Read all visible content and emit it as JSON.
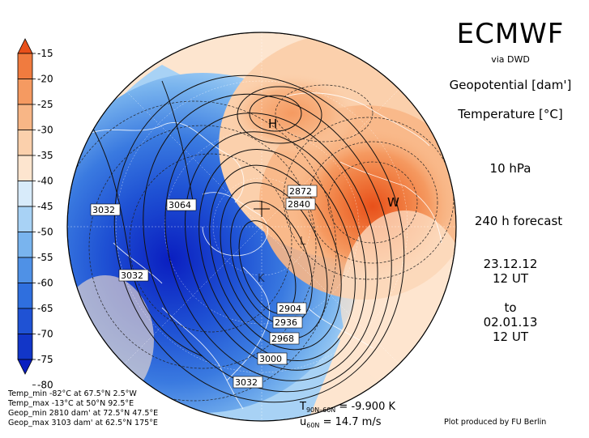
{
  "header": {
    "title": "ECMWF",
    "source": "via DWD",
    "variable_1": "Geopotential [dam']",
    "variable_2": "Temperature [°C]",
    "level": "10 hPa",
    "forecast": "240 h forecast",
    "init_date": "23.12.12",
    "init_time": "12 UT",
    "to_label": "to",
    "valid_date": "02.01.13",
    "valid_time": "12 UT"
  },
  "colorbar": {
    "labels": [
      "-15",
      "-20",
      "-25",
      "-30",
      "-35",
      "-40",
      "-45",
      "-50",
      "-55",
      "-60",
      "-65",
      "-70",
      "-75",
      "-80"
    ],
    "colors": [
      "#e8501a",
      "#f07b3f",
      "#f59a61",
      "#f8b686",
      "#fbd0ac",
      "#fde5cf",
      "#d8ebfa",
      "#a8d2f5",
      "#79b4ee",
      "#4f91e6",
      "#2f6fde",
      "#1f52d4",
      "#1236c8",
      "#0a1ec0"
    ]
  },
  "map": {
    "contour_labels": [
      "3032",
      "3064",
      "3032",
      "2872",
      "2840",
      "2904",
      "2936",
      "2968",
      "3000",
      "3032"
    ],
    "markers": [
      "H",
      "W",
      "L",
      "K"
    ]
  },
  "stats": {
    "temp_min": "Temp_min -82°C at 67.5°N 2.5°W",
    "temp_max": "Temp_max -13°C at 50°N 92.5°E",
    "geop_min": "Geop_min 2810 dam' at 72.5°N 47.5°E",
    "geop_max": "Geop_max 3103 dam' at 62.5°N 175°E"
  },
  "indices": {
    "t_symbol": "T",
    "t_sub": "90N–60N",
    "t_value": "= -9.900 K",
    "u_symbol": "u",
    "u_sub": "60N",
    "u_value": "= 14.7 m/s"
  },
  "credit": "Plot produced by FU Berlin"
}
